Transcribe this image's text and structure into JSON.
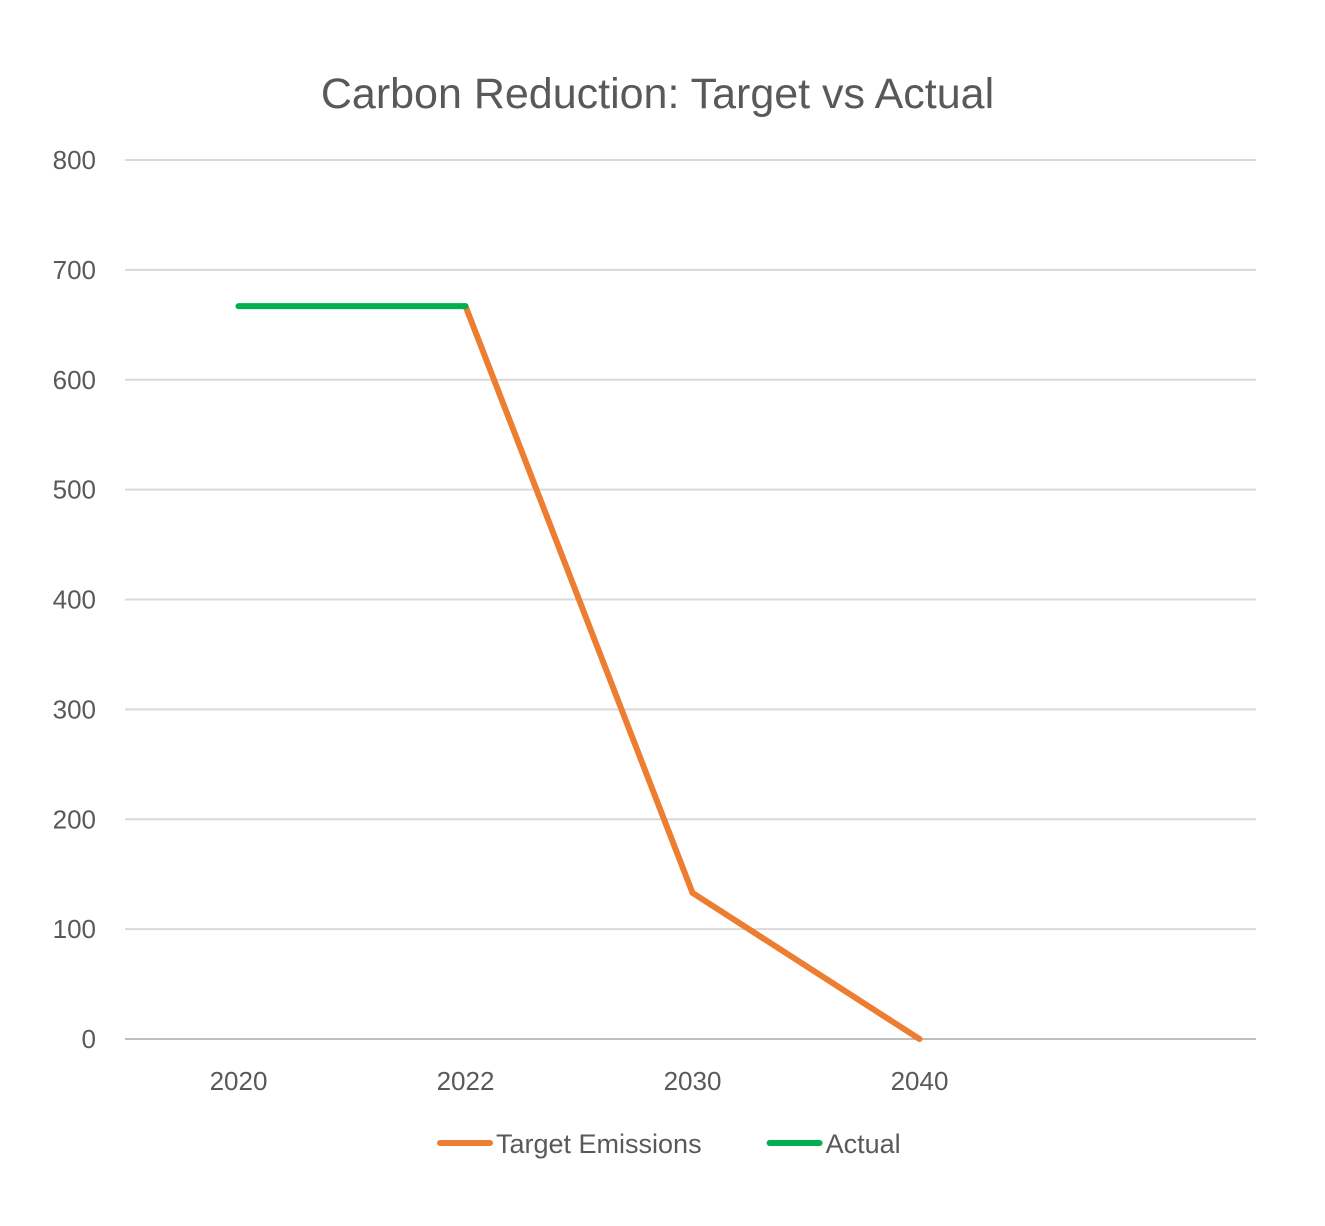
{
  "chart_data": {
    "type": "line",
    "title": "Carbon Reduction: Target vs Actual",
    "xlabel": "",
    "ylabel": "",
    "categories": [
      "2020",
      "2022",
      "2030",
      "2040"
    ],
    "ylim": [
      0,
      800
    ],
    "yticks": [
      0,
      100,
      200,
      300,
      400,
      500,
      600,
      700,
      800
    ],
    "grid": true,
    "legend_position": "bottom",
    "series": [
      {
        "name": "Target Emissions",
        "color": "#ED7D31",
        "values": [
          null,
          667,
          133,
          0
        ]
      },
      {
        "name": "Actual",
        "color": "#00B050",
        "values": [
          667,
          667,
          null,
          null
        ]
      }
    ]
  }
}
